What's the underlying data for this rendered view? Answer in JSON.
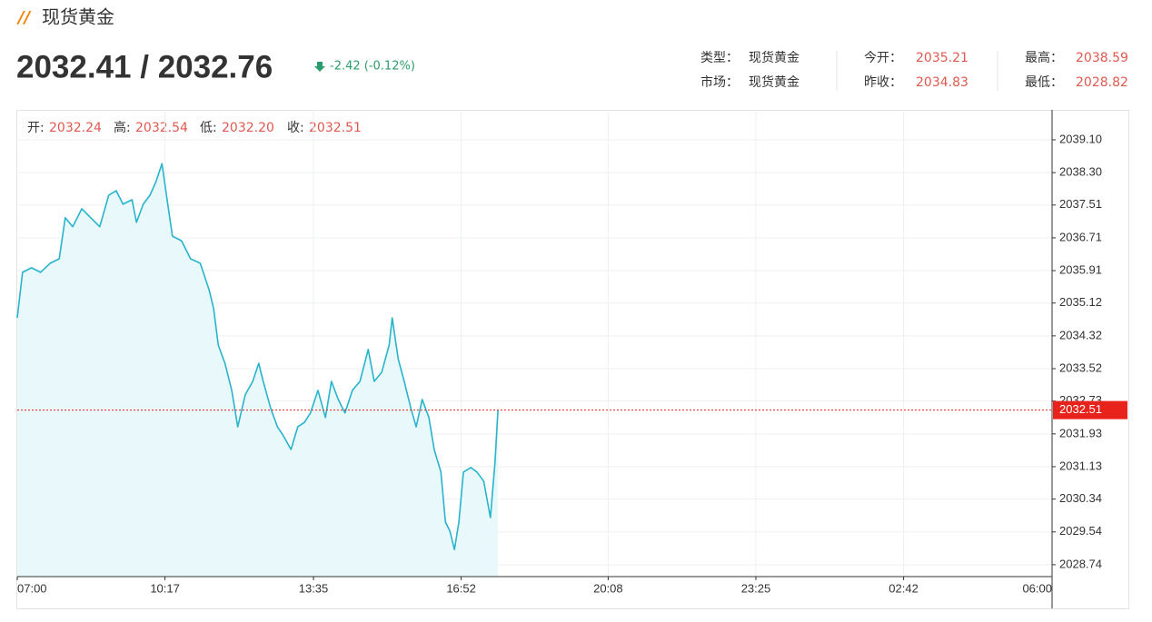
{
  "header": {
    "title": "现货黄金",
    "price": "2032.41 / 2032.76",
    "change": "-2.42 (-0.12%)"
  },
  "info": [
    [
      {
        "label": "类型：",
        "value": "现货黄金"
      },
      {
        "label": "今开：",
        "value": "2035.21"
      },
      {
        "label": "最高：",
        "value": "2038.59"
      }
    ],
    [
      {
        "label": "市场：",
        "value": "现货黄金"
      },
      {
        "label": "昨收：",
        "value": "2034.83"
      },
      {
        "label": "最低：",
        "value": "2028.82"
      }
    ]
  ],
  "ohlc": [
    {
      "label": "开:",
      "value": "2032.24"
    },
    {
      "label": "高:",
      "value": "2032.54"
    },
    {
      "label": "低:",
      "value": "2032.20"
    },
    {
      "label": "收:",
      "value": "2032.51"
    }
  ],
  "chart_data": {
    "type": "area",
    "x": [
      "07:00",
      "07:07",
      "07:19",
      "07:31",
      "07:44",
      "07:56",
      "08:04",
      "08:14",
      "08:26",
      "08:38",
      "08:50",
      "09:02",
      "09:12",
      "09:21",
      "09:33",
      "09:39",
      "09:48",
      "09:57",
      "10:05",
      "10:13",
      "10:19",
      "10:27",
      "10:39",
      "10:51",
      "11:04",
      "11:16",
      "11:22",
      "11:28",
      "11:37",
      "11:46",
      "11:54",
      "12:04",
      "12:14",
      "12:22",
      "12:28",
      "12:38",
      "12:47",
      "12:55",
      "13:05",
      "13:14",
      "13:23",
      "13:31",
      "13:41",
      "13:51",
      "13:59",
      "14:08",
      "14:17",
      "14:27",
      "14:37",
      "14:48",
      "14:56",
      "15:06",
      "15:16",
      "15:20",
      "15:28",
      "15:36",
      "15:45",
      "15:52",
      "16:00",
      "16:09",
      "16:16",
      "16:25",
      "16:31",
      "16:37",
      "16:43",
      "16:49",
      "16:55",
      "17:05",
      "17:13",
      "17:22",
      "17:31",
      "17:37",
      "17:41"
    ],
    "values": [
      2034.76,
      2035.87,
      2035.98,
      2035.87,
      2036.09,
      2036.2,
      2037.2,
      2036.98,
      2037.42,
      2037.2,
      2036.98,
      2037.75,
      2037.86,
      2037.53,
      2037.64,
      2037.09,
      2037.53,
      2037.75,
      2038.08,
      2038.52,
      2037.75,
      2036.75,
      2036.64,
      2036.2,
      2036.09,
      2035.43,
      2034.98,
      2034.1,
      2033.65,
      2032.99,
      2032.1,
      2032.88,
      2033.21,
      2033.65,
      2033.21,
      2032.55,
      2032.1,
      2031.88,
      2031.55,
      2032.1,
      2032.21,
      2032.44,
      2032.99,
      2032.33,
      2033.21,
      2032.77,
      2032.44,
      2032.99,
      2033.21,
      2033.99,
      2033.21,
      2033.43,
      2034.1,
      2034.76,
      2033.76,
      2033.21,
      2032.55,
      2032.1,
      2032.77,
      2032.33,
      2031.55,
      2031.0,
      2029.78,
      2029.56,
      2029.11,
      2029.78,
      2031.0,
      2031.11,
      2031.0,
      2030.78,
      2029.89,
      2031.22,
      2032.51
    ],
    "color": "#27b4cc",
    "fill_color": "#e9f8fa",
    "current": {
      "value": 2032.51,
      "label": "2032.51"
    },
    "current_color": "#e8231b",
    "xlim": [
      "07:00",
      "06:00"
    ],
    "xticks": [
      "07:00",
      "10:17",
      "13:35",
      "16:52",
      "20:08",
      "23:25",
      "02:42",
      "06:00"
    ],
    "ylim": [
      2028.45,
      2039.83
    ],
    "yticks": [
      {
        "value": 2039.1,
        "label": "2039.10"
      },
      {
        "value": 2038.3,
        "label": "2038.30"
      },
      {
        "value": 2037.51,
        "label": "2037.51"
      },
      {
        "value": 2036.71,
        "label": "2036.71"
      },
      {
        "value": 2035.91,
        "label": "2035.91"
      },
      {
        "value": 2035.12,
        "label": "2035.12"
      },
      {
        "value": 2034.32,
        "label": "2034.32"
      },
      {
        "value": 2033.52,
        "label": "2033.52"
      },
      {
        "value": 2032.73,
        "label": "2032.73"
      },
      {
        "value": 2031.93,
        "label": "2031.93"
      },
      {
        "value": 2031.13,
        "label": "2031.13"
      },
      {
        "value": 2030.34,
        "label": "2030.34"
      },
      {
        "value": 2029.54,
        "label": "2029.54"
      },
      {
        "value": 2028.74,
        "label": "2028.74"
      }
    ],
    "grid": true
  }
}
